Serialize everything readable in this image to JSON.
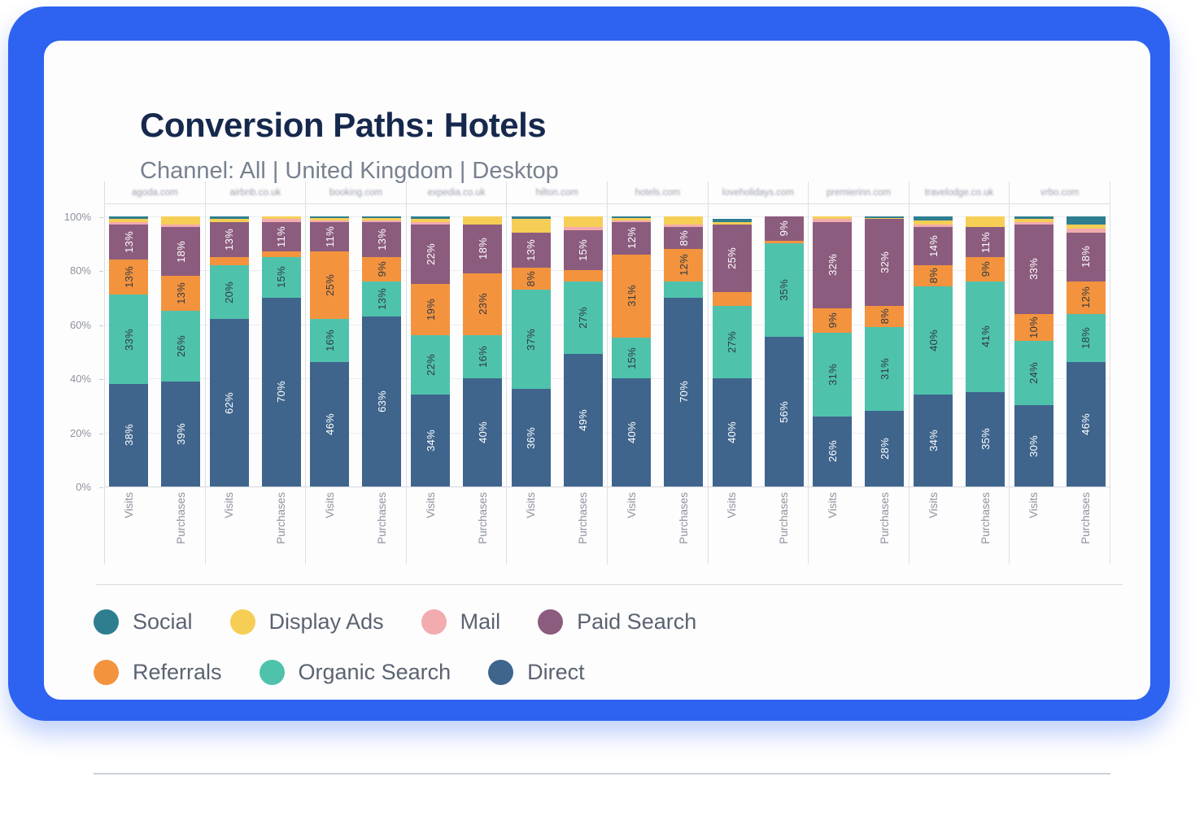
{
  "header": {
    "title": "Conversion Paths: Hotels",
    "subtitle": "Channel: All | United Kingdom | Desktop"
  },
  "colors": {
    "frame_blue": "#2d63f0",
    "title_navy": "#16294d",
    "subtitle_gray": "#78818f"
  },
  "chart_data": {
    "type": "bar",
    "stacked": true,
    "stack_order_bottom_to_top": [
      "Direct",
      "Organic Search",
      "Referrals",
      "Paid Search",
      "Mail",
      "Display Ads",
      "Social"
    ],
    "series_colors": {
      "Social": "#2e7e8f",
      "Display Ads": "#f6ce55",
      "Mail": "#f2abae",
      "Paid Search": "#8b5c7e",
      "Referrals": "#f4933e",
      "Organic Search": "#4fc2ac",
      "Direct": "#3f658d"
    },
    "label_text_colors": {
      "Direct": "#ffffff",
      "Paid Search": "#ffffff",
      "Social": "#ffffff",
      "Organic Search": "#2f3a44",
      "Referrals": "#2f3a44",
      "Display Ads": "#2f3a44",
      "Mail": "#2f3a44"
    },
    "label_min_pct": 8,
    "y_ticks": [
      0,
      20,
      40,
      60,
      80,
      100
    ],
    "y_tick_suffix": "%",
    "bar_labels": [
      "Visits",
      "Purchases"
    ],
    "sites": [
      {
        "name": "agoda.com",
        "visits": {
          "Direct": 38,
          "Organic Search": 33,
          "Referrals": 13,
          "Paid Search": 13,
          "Mail": 1,
          "Display Ads": 1,
          "Social": 1
        },
        "purchases": {
          "Direct": 39,
          "Organic Search": 26,
          "Referrals": 13,
          "Paid Search": 18,
          "Mail": 1,
          "Display Ads": 3,
          "Social": 0
        }
      },
      {
        "name": "airbnb.co.uk",
        "visits": {
          "Direct": 62,
          "Organic Search": 20,
          "Referrals": 3,
          "Paid Search": 13,
          "Mail": 0,
          "Display Ads": 1,
          "Social": 1
        },
        "purchases": {
          "Direct": 70,
          "Organic Search": 15,
          "Referrals": 2,
          "Paid Search": 11,
          "Mail": 1,
          "Display Ads": 1,
          "Social": 0
        }
      },
      {
        "name": "booking.com",
        "visits": {
          "Direct": 46,
          "Organic Search": 16,
          "Referrals": 25,
          "Paid Search": 11,
          "Mail": 0.5,
          "Display Ads": 1,
          "Social": 0.5
        },
        "purchases": {
          "Direct": 63,
          "Organic Search": 13,
          "Referrals": 9,
          "Paid Search": 13,
          "Mail": 0.5,
          "Display Ads": 1,
          "Social": 0.5
        }
      },
      {
        "name": "expedia.co.uk",
        "visits": {
          "Direct": 34,
          "Organic Search": 22,
          "Referrals": 19,
          "Paid Search": 22,
          "Mail": 1,
          "Display Ads": 1,
          "Social": 1
        },
        "purchases": {
          "Direct": 40,
          "Organic Search": 16,
          "Referrals": 23,
          "Paid Search": 18,
          "Mail": 0,
          "Display Ads": 3,
          "Social": 0
        }
      },
      {
        "name": "hilton.com",
        "visits": {
          "Direct": 36,
          "Organic Search": 37,
          "Referrals": 8,
          "Paid Search": 13,
          "Mail": 0,
          "Display Ads": 5,
          "Social": 1
        },
        "purchases": {
          "Direct": 49,
          "Organic Search": 27,
          "Referrals": 4,
          "Paid Search": 15,
          "Mail": 1,
          "Display Ads": 4,
          "Social": 0
        }
      },
      {
        "name": "hotels.com",
        "visits": {
          "Direct": 40,
          "Organic Search": 15,
          "Referrals": 31,
          "Paid Search": 12,
          "Mail": 0.5,
          "Display Ads": 1,
          "Social": 0.5
        },
        "purchases": {
          "Direct": 70,
          "Organic Search": 6,
          "Referrals": 12,
          "Paid Search": 8,
          "Mail": 1,
          "Display Ads": 3,
          "Social": 0
        }
      },
      {
        "name": "loveholidays.com",
        "visits": {
          "Direct": 40,
          "Organic Search": 27,
          "Referrals": 5,
          "Paid Search": 25,
          "Mail": 0,
          "Display Ads": 1,
          "Social": 1
        },
        "purchases": {
          "Direct": 56,
          "Organic Search": 35,
          "Referrals": 1,
          "Paid Search": 9,
          "Mail": 0,
          "Display Ads": 0,
          "Social": 0
        }
      },
      {
        "name": "premierinn.com",
        "visits": {
          "Direct": 26,
          "Organic Search": 31,
          "Referrals": 9,
          "Paid Search": 32,
          "Mail": 1,
          "Display Ads": 1,
          "Social": 0
        },
        "purchases": {
          "Direct": 28,
          "Organic Search": 31,
          "Referrals": 8,
          "Paid Search": 32,
          "Mail": 0,
          "Display Ads": 0.5,
          "Social": 0.5
        }
      },
      {
        "name": "travelodge.co.uk",
        "visits": {
          "Direct": 34,
          "Organic Search": 40,
          "Referrals": 8,
          "Paid Search": 14,
          "Mail": 1,
          "Display Ads": 1.5,
          "Social": 1.5
        },
        "purchases": {
          "Direct": 35,
          "Organic Search": 41,
          "Referrals": 9,
          "Paid Search": 11,
          "Mail": 0,
          "Display Ads": 4,
          "Social": 0
        }
      },
      {
        "name": "vrbo.com",
        "visits": {
          "Direct": 30,
          "Organic Search": 24,
          "Referrals": 10,
          "Paid Search": 33,
          "Mail": 1,
          "Display Ads": 1,
          "Social": 1
        },
        "purchases": {
          "Direct": 46,
          "Organic Search": 18,
          "Referrals": 12,
          "Paid Search": 18,
          "Mail": 1.5,
          "Display Ads": 1.5,
          "Social": 3
        }
      }
    ]
  },
  "legend": {
    "rows": [
      [
        "Social",
        "Display Ads",
        "Mail",
        "Paid Search"
      ],
      [
        "Referrals",
        "Organic Search",
        "Direct"
      ]
    ]
  }
}
